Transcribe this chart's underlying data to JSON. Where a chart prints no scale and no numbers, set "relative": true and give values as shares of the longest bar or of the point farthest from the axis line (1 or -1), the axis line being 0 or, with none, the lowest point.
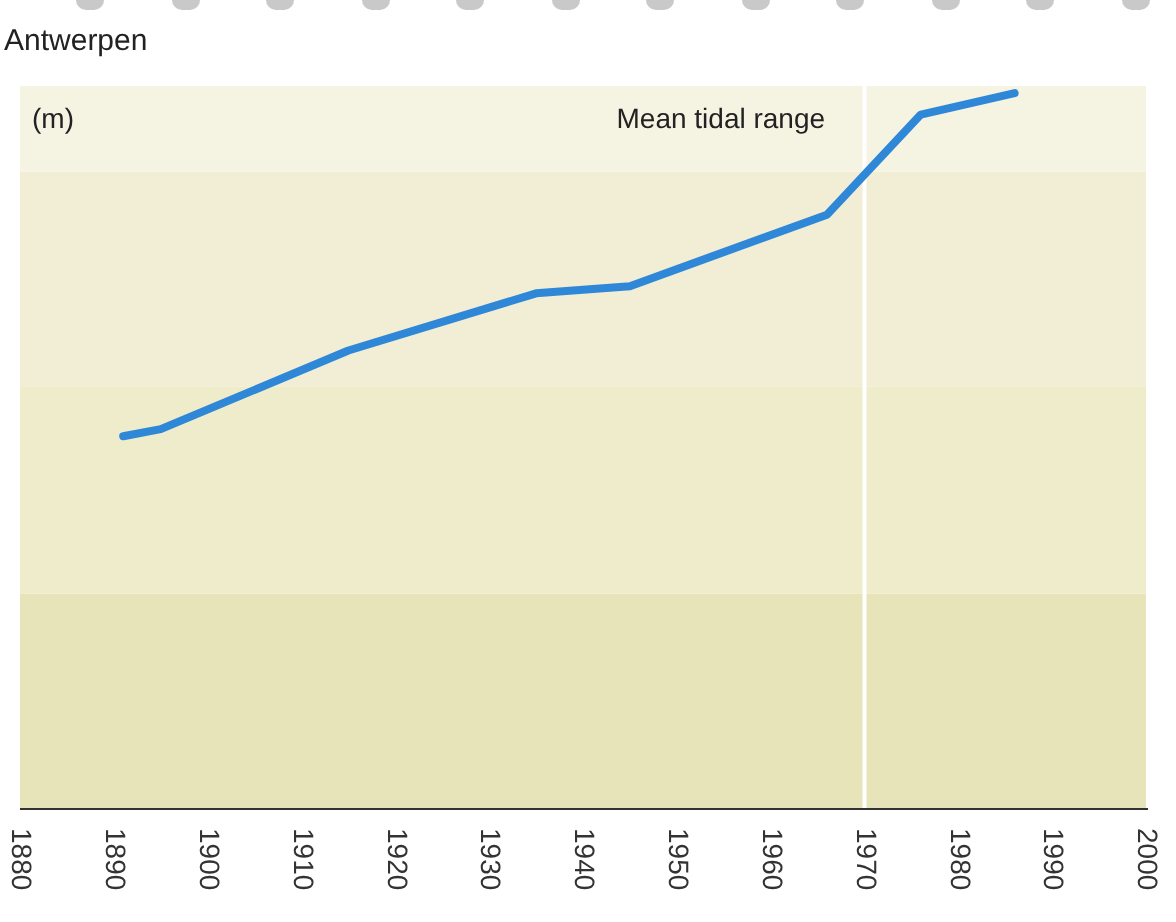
{
  "chart_data": {
    "type": "line",
    "title": "Antwerpen",
    "ylabel": "(m)",
    "relative": true,
    "x": [
      1891,
      1895,
      1915,
      1935,
      1945,
      1966,
      1976,
      1986
    ],
    "series": [
      {
        "name": "Mean tidal range",
        "color": "#2f87d8",
        "values": [
          0.52,
          0.53,
          0.64,
          0.72,
          0.73,
          0.83,
          0.97,
          1
        ]
      }
    ],
    "xlim": [
      1880,
      2000
    ],
    "xticks": [
      1880,
      1890,
      1900,
      1910,
      1920,
      1930,
      1940,
      1950,
      1960,
      1970,
      1980,
      1990,
      2000
    ],
    "bands": [
      {
        "axis": "y",
        "from": 0,
        "to": 0.3,
        "color": "#e8e4ba"
      },
      {
        "axis": "y",
        "from": 0.3,
        "to": 0.59,
        "color": "#efeccb"
      },
      {
        "axis": "y",
        "from": 0.59,
        "to": 0.89,
        "color": "#f1eed5"
      },
      {
        "axis": "y",
        "from": 0.89,
        "to": 1.01,
        "color": "#f5f3e2"
      }
    ],
    "ref_lines": [
      {
        "axis": "x",
        "value": 1970,
        "color": "#ffffff"
      }
    ],
    "legend": false,
    "marker": "none",
    "line_style": "solid"
  }
}
